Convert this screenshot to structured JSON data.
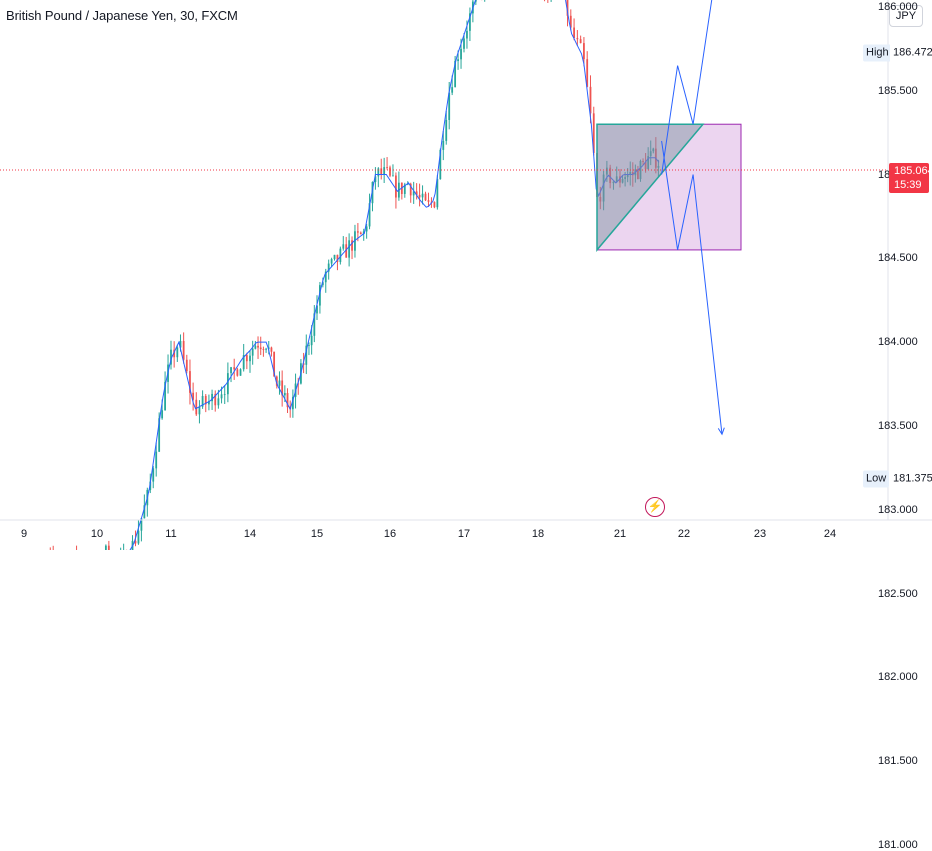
{
  "header": {
    "title": "British Pound / Japanese Yen, 30, FXCM",
    "currency_button": "JPY"
  },
  "chart_data": {
    "type": "candlestick",
    "title": "British Pound / Japanese Yen, 30, FXCM",
    "ylim": [
      181.0,
      186.8
    ],
    "y_ticks": [
      "181.000",
      "181.500",
      "182.000",
      "182.500",
      "183.000",
      "183.500",
      "184.000",
      "184.500",
      "185.000",
      "185.500",
      "186.000"
    ],
    "x_ticks": [
      "9",
      "10",
      "11",
      "14",
      "15",
      "16",
      "17",
      "18",
      "21",
      "22",
      "23",
      "24"
    ],
    "high": {
      "label": "High",
      "value": "186.472"
    },
    "low": {
      "label": "Low",
      "value": "181.375"
    },
    "last_price": {
      "value": "185.064",
      "countdown": "15:39"
    },
    "close_path": [
      [
        0,
        181.8
      ],
      [
        1.5,
        182.3
      ],
      [
        3,
        182.7
      ],
      [
        5,
        182.6
      ],
      [
        7,
        182.7
      ],
      [
        9,
        182.55
      ],
      [
        11,
        182.75
      ],
      [
        13,
        182.65
      ],
      [
        15,
        182.8
      ],
      [
        17,
        183.1
      ],
      [
        18,
        183.4
      ],
      [
        19,
        183.7
      ],
      [
        20,
        183.9
      ],
      [
        21,
        184.0
      ],
      [
        22,
        183.8
      ],
      [
        23,
        183.6
      ],
      [
        25,
        183.65
      ],
      [
        27,
        183.75
      ],
      [
        29,
        183.9
      ],
      [
        31,
        184.0
      ],
      [
        32.5,
        184.0
      ],
      [
        34,
        183.75
      ],
      [
        36,
        183.6
      ],
      [
        37.5,
        183.8
      ],
      [
        39,
        184.05
      ],
      [
        41,
        184.4
      ],
      [
        43,
        184.5
      ],
      [
        45,
        184.6
      ],
      [
        46.5,
        184.65
      ],
      [
        48,
        185.0
      ],
      [
        49.5,
        185.0
      ],
      [
        51,
        184.9
      ],
      [
        52.5,
        184.95
      ],
      [
        54,
        184.85
      ],
      [
        55,
        184.8
      ],
      [
        56,
        184.85
      ],
      [
        57,
        185.2
      ],
      [
        58,
        185.5
      ],
      [
        59,
        185.7
      ],
      [
        60.5,
        185.9
      ],
      [
        62,
        186.1
      ],
      [
        63.5,
        186.2
      ],
      [
        65,
        186.15
      ],
      [
        66.5,
        186.2
      ],
      [
        68,
        186.25
      ],
      [
        70,
        186.15
      ],
      [
        71,
        186.1
      ],
      [
        72,
        186.1
      ],
      [
        73,
        186.15
      ],
      [
        74,
        185.85
      ],
      [
        75.5,
        185.7
      ],
      [
        76.5,
        185.3
      ],
      [
        77.2,
        184.85
      ],
      [
        78.5,
        185.0
      ],
      [
        79.5,
        184.95
      ],
      [
        80.5,
        185.0
      ],
      [
        82,
        185.0
      ],
      [
        83.5,
        185.05
      ],
      [
        84.5,
        185.1
      ],
      [
        85.5,
        185.1
      ],
      [
        86.3,
        185.064
      ]
    ],
    "drawings": [
      {
        "type": "rectangle",
        "x": [
          77.2,
          97.5
        ],
        "y": [
          184.55,
          185.3
        ]
      },
      {
        "type": "triangle",
        "points": [
          [
            77.2,
            185.3
          ],
          [
            92.5,
            185.3
          ],
          [
            77.2,
            184.55
          ]
        ]
      },
      {
        "type": "projection_up",
        "points": [
          [
            86.5,
            185.0
          ],
          [
            89,
            185.65
          ],
          [
            91.2,
            185.3
          ],
          [
            95,
            186.45
          ]
        ]
      },
      {
        "type": "projection_down",
        "points": [
          [
            86.5,
            185.2
          ],
          [
            89,
            184.55
          ],
          [
            91.2,
            185.0
          ],
          [
            95,
            183.45
          ]
        ]
      }
    ],
    "grid": false
  },
  "event_badge": "⚡"
}
